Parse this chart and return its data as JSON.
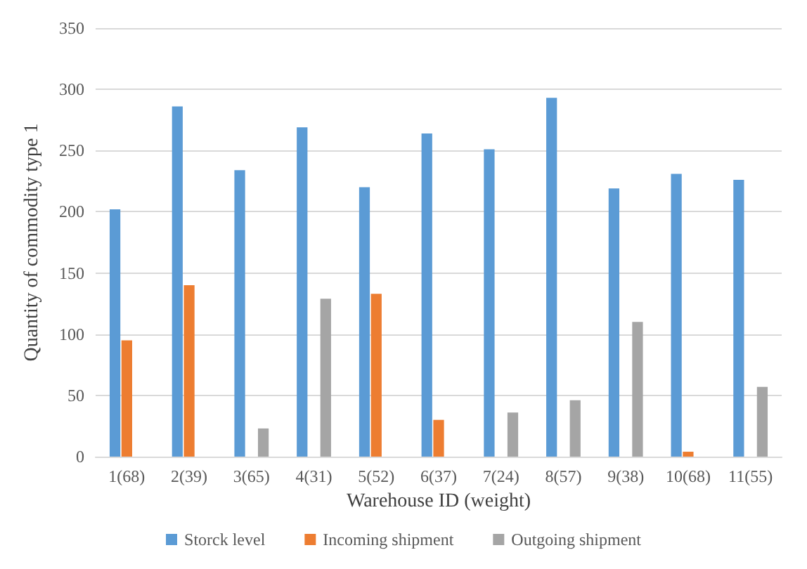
{
  "chart_data": {
    "type": "bar",
    "xlabel": "Warehouse ID (weight)",
    "ylabel": "Quantity of commodity type 1",
    "categories": [
      "1(68)",
      "2(39)",
      "3(65)",
      "4(31)",
      "5(52)",
      "6(37)",
      "7(24)",
      "8(57)",
      "9(38)",
      "10(68)",
      "11(55)"
    ],
    "series": [
      {
        "name": "Storck level",
        "color": "#5b9bd5",
        "values": [
          202,
          286,
          234,
          269,
          220,
          264,
          251,
          293,
          219,
          231,
          226
        ]
      },
      {
        "name": "Incoming shipment",
        "color": "#ed7d31",
        "values": [
          95,
          140,
          0,
          0,
          133,
          30,
          0,
          0,
          0,
          4,
          0
        ]
      },
      {
        "name": "Outgoing shipment",
        "color": "#a5a5a5",
        "values": [
          0,
          0,
          23,
          129,
          0,
          0,
          36,
          46,
          110,
          0,
          57
        ]
      }
    ],
    "ylim": [
      0,
      350
    ],
    "yticks": [
      0,
      50,
      100,
      150,
      200,
      250,
      300,
      350
    ],
    "grid": "y",
    "legend": "bottom"
  }
}
